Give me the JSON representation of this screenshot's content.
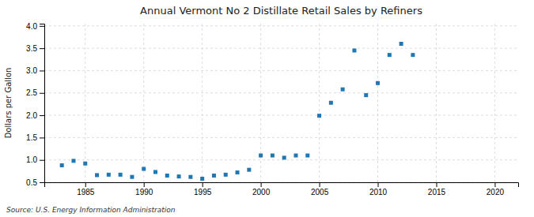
{
  "chart_data": {
    "type": "scatter",
    "title": "Annual Vermont No 2 Distillate Retail Sales by Refiners",
    "ylabel": "Dollars per Gallon",
    "annotations": [
      "Source: U.S. Energy Information Administration"
    ],
    "marker": "square",
    "grid": true,
    "xlim": [
      1981.5,
      2022
    ],
    "ylim": [
      0.5,
      4.05
    ],
    "xticks": [
      1985,
      1990,
      1995,
      2000,
      2005,
      2010,
      2015,
      2020
    ],
    "yticks": [
      0.5,
      {
        "value": 1.0,
        "label": "1.0"
      },
      1.5,
      {
        "value": 2.0,
        "label": "2.0"
      },
      2.5,
      {
        "value": 3.0,
        "label": "3.0"
      },
      3.5,
      {
        "value": 4.0,
        "label": "4.0"
      }
    ],
    "x": [
      1983,
      1984,
      1985,
      1986,
      1987,
      1988,
      1989,
      1990,
      1991,
      1992,
      1993,
      1994,
      1995,
      1996,
      1997,
      1998,
      1999,
      2000,
      2001,
      2002,
      2003,
      2004,
      2005,
      2006,
      2007,
      2008,
      2009,
      2010,
      2011,
      2012,
      2013
    ],
    "values": [
      0.88,
      0.98,
      0.92,
      0.66,
      0.67,
      0.67,
      0.62,
      0.8,
      0.73,
      0.65,
      0.63,
      0.62,
      0.58,
      0.65,
      0.67,
      0.72,
      0.78,
      1.1,
      1.1,
      1.05,
      1.1,
      1.1,
      1.99,
      2.28,
      2.58,
      3.45,
      2.45,
      2.72,
      3.35,
      3.6,
      3.35
    ]
  }
}
